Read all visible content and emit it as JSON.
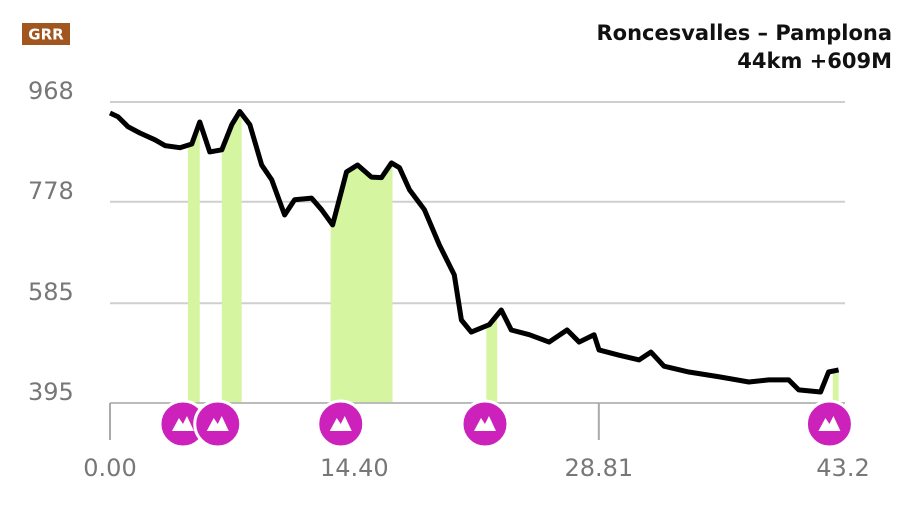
{
  "chart_data": {
    "type": "line",
    "logo": "GRR",
    "title": "Roncesvalles – Pamplona",
    "subtitle": "44km +609M",
    "color": "#000000",
    "climb_color": "#d5f5a0",
    "marker_color": "#cc22bb",
    "xlim": [
      0,
      43.2
    ],
    "ylim": [
      395,
      968
    ],
    "xticks": [
      {
        "value": 0,
        "label": "0.00"
      },
      {
        "value": 14.4,
        "label": "14.40"
      },
      28.81,
      43.2
    ],
    "yticks": [
      968,
      778,
      585,
      395
    ],
    "grid": true,
    "x": [
      0,
      0.47,
      1.06,
      1.76,
      2.65,
      3.24,
      4.12,
      4.82,
      5.29,
      5.88,
      6.59,
      7.18,
      7.65,
      8.24,
      8.94,
      9.53,
      10.29,
      10.88,
      11.88,
      12.47,
      13.12,
      13.94,
      14.59,
      15.41,
      16.0,
      16.59,
      17.06,
      17.65,
      18.53,
      19.41,
      20.29,
      20.71,
      21.29,
      22.35,
      23.06,
      23.65,
      24.71,
      25.88,
      26.94,
      27.65,
      28.53,
      28.82,
      30.0,
      31.18,
      31.88,
      32.65,
      34.12,
      35.88,
      37.65,
      38.82,
      40.0,
      40.59,
      41.88,
      42.35,
      42.94
    ],
    "values": [
      947,
      940,
      921,
      909,
      896,
      885,
      881,
      888,
      930,
      873,
      877,
      925,
      950,
      925,
      848,
      820,
      753,
      782,
      785,
      763,
      734,
      835,
      848,
      825,
      824,
      852,
      843,
      801,
      763,
      696,
      639,
      553,
      530,
      544,
      572,
      534,
      525,
      511,
      534,
      511,
      525,
      496,
      486,
      477,
      492,
      465,
      454,
      445,
      435,
      439,
      439,
      420,
      416,
      454,
      458
    ],
    "climbs": [
      {
        "start": 4.59,
        "end": 5.29
      },
      {
        "start": 6.59,
        "end": 7.76
      },
      {
        "start": 13.0,
        "end": 16.65
      },
      {
        "start": 22.18,
        "end": 22.82
      },
      {
        "start": 42.6,
        "end": 42.94
      }
    ],
    "climb_markers": [
      4.3,
      6.35,
      13.6,
      22.1,
      42.4
    ]
  }
}
